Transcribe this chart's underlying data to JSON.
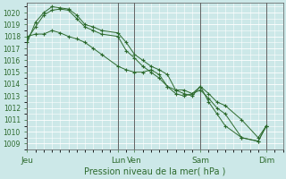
{
  "title": "Pression niveau de la mer( hPa )",
  "bg_color": "#cce8e8",
  "grid_color": "#ffffff",
  "line_color": "#2d6a2d",
  "ylim": [
    1008.5,
    1020.8
  ],
  "yticks": [
    1009,
    1010,
    1011,
    1012,
    1013,
    1014,
    1015,
    1016,
    1017,
    1018,
    1019,
    1020
  ],
  "xtick_labels": [
    "Jeu",
    "Lun",
    "Ven",
    "Sam",
    "Dim"
  ],
  "xtick_positions": [
    0,
    55,
    65,
    105,
    145
  ],
  "vline_positions": [
    0,
    55,
    65,
    105,
    145
  ],
  "xlim": [
    0,
    155
  ],
  "series": [
    {
      "x": [
        0,
        5,
        10,
        15,
        20,
        25,
        30,
        35,
        40,
        45,
        55,
        60,
        65,
        70,
        75,
        80,
        85,
        90,
        95,
        100,
        105,
        110,
        115,
        120,
        130,
        140,
        145
      ],
      "y": [
        1017.5,
        1019.2,
        1020.0,
        1020.5,
        1020.4,
        1020.3,
        1019.8,
        1019.0,
        1018.8,
        1018.5,
        1018.3,
        1017.5,
        1016.5,
        1016.0,
        1015.5,
        1015.2,
        1014.8,
        1013.5,
        1013.2,
        1013.0,
        1013.8,
        1013.2,
        1012.5,
        1012.2,
        1011.0,
        1009.5,
        1010.5
      ]
    },
    {
      "x": [
        0,
        5,
        10,
        15,
        20,
        25,
        30,
        35,
        40,
        45,
        55,
        60,
        65,
        70,
        75,
        80,
        85,
        90,
        95,
        100,
        105,
        110,
        115,
        120,
        130,
        140,
        145
      ],
      "y": [
        1017.8,
        1018.8,
        1019.8,
        1020.2,
        1020.3,
        1020.2,
        1019.5,
        1018.8,
        1018.5,
        1018.2,
        1018.0,
        1016.8,
        1016.2,
        1015.5,
        1015.0,
        1014.5,
        1013.8,
        1013.2,
        1013.0,
        1013.2,
        1013.5,
        1012.8,
        1012.0,
        1011.5,
        1009.5,
        1009.2,
        1010.5
      ]
    },
    {
      "x": [
        0,
        5,
        10,
        15,
        20,
        25,
        30,
        35,
        40,
        45,
        55,
        60,
        65,
        70,
        75,
        80,
        85,
        90,
        95,
        100,
        105,
        110,
        115,
        120,
        130,
        140,
        145
      ],
      "y": [
        1018.0,
        1018.2,
        1018.2,
        1018.5,
        1018.3,
        1018.0,
        1017.8,
        1017.5,
        1017.0,
        1016.5,
        1015.5,
        1015.2,
        1015.0,
        1015.0,
        1015.2,
        1014.8,
        1013.8,
        1013.5,
        1013.5,
        1013.2,
        1013.8,
        1012.5,
        1011.5,
        1010.5,
        1009.5,
        1009.2,
        1010.5
      ]
    }
  ]
}
